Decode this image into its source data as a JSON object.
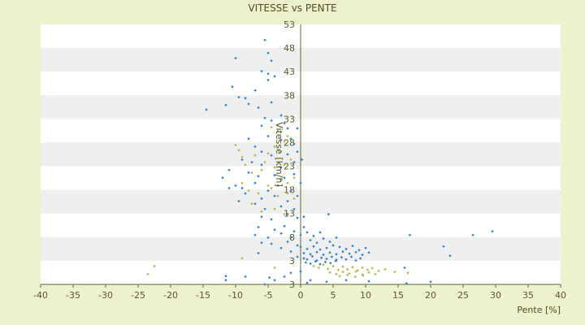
{
  "chart_data": {
    "type": "scatter",
    "title": "VITESSE vs PENTE",
    "xlabel": "Pente [%]",
    "ylabel": "Vitesse [km/h]",
    "xlim": [
      -40,
      40
    ],
    "ylim": [
      3,
      53
    ],
    "x_ticks": [
      "-40",
      "-35",
      "-30",
      "-25",
      "-20",
      "-15",
      "-10",
      "-5",
      "0",
      "5",
      "10",
      "15",
      "20",
      "25",
      "30",
      "35",
      "40"
    ],
    "y_ticks": [
      "3",
      "3",
      "8",
      "13",
      "18",
      "23",
      "28",
      "33",
      "38",
      "43",
      "48",
      "53"
    ],
    "grid": "horizontal bands",
    "legend": "none",
    "colors": {
      "background": "#edf2cc",
      "plot_band_light": "#ffffff",
      "plot_band_dark": "#efefef",
      "series_blue": "#2f7fd6",
      "series_olive": "#b7b54a",
      "axis": "#666633"
    },
    "series": [
      {
        "color": "#2f7fd6",
        "points": [
          [
            -5.5,
            50
          ],
          [
            -5,
            47.5
          ],
          [
            -4.5,
            46
          ],
          [
            -10,
            46.5
          ],
          [
            -6,
            44
          ],
          [
            -5,
            43.5
          ],
          [
            -4,
            43
          ],
          [
            -5,
            42.3
          ],
          [
            -10.5,
            41
          ],
          [
            -9.5,
            39
          ],
          [
            -8.5,
            38.8
          ],
          [
            -8,
            37.7
          ],
          [
            -7,
            40.3
          ],
          [
            -6.5,
            37
          ],
          [
            -4.5,
            38
          ],
          [
            -14.5,
            36.6
          ],
          [
            -11.5,
            37.5
          ],
          [
            -5.5,
            35
          ],
          [
            -4.5,
            34.5
          ],
          [
            -3,
            35.5
          ],
          [
            -2.5,
            34
          ],
          [
            -6,
            33.5
          ],
          [
            -2,
            33
          ],
          [
            -1.5,
            31
          ],
          [
            -0.5,
            33
          ],
          [
            -5,
            31.5
          ],
          [
            -3,
            30.8
          ],
          [
            -1,
            30
          ],
          [
            -8,
            31
          ],
          [
            -7,
            29.5
          ],
          [
            -6,
            28.5
          ],
          [
            -4.5,
            27.8
          ],
          [
            -2,
            28
          ],
          [
            -0.5,
            28.5
          ],
          [
            -9,
            27
          ],
          [
            -7.5,
            26.5
          ],
          [
            -6,
            26
          ],
          [
            -3,
            25.5
          ],
          [
            -1,
            26.5
          ],
          [
            0.2,
            27
          ],
          [
            -11,
            25
          ],
          [
            -8,
            24.5
          ],
          [
            -6.5,
            23.8
          ],
          [
            -4,
            24
          ],
          [
            -2.5,
            23.5
          ],
          [
            -1,
            24.2
          ],
          [
            -12,
            23.5
          ],
          [
            -10,
            22
          ],
          [
            -9,
            21.5
          ],
          [
            -7,
            22.5
          ],
          [
            -5,
            21
          ],
          [
            -3.5,
            22
          ],
          [
            -1.5,
            21
          ],
          [
            0,
            22.5
          ],
          [
            -11,
            21.5
          ],
          [
            -8.5,
            20.5
          ],
          [
            -6,
            19.5
          ],
          [
            -4,
            20
          ],
          [
            -2,
            19
          ],
          [
            -0.5,
            20
          ],
          [
            -9.5,
            19
          ],
          [
            -7,
            18.5
          ],
          [
            -5.5,
            17.5
          ],
          [
            -3,
            18
          ],
          [
            -1,
            17.5
          ],
          [
            -6,
            16
          ],
          [
            -4.5,
            15.5
          ],
          [
            -2,
            16.5
          ],
          [
            -0.5,
            15.8
          ],
          [
            0.5,
            16
          ],
          [
            -6.5,
            14
          ],
          [
            -4,
            13.5
          ],
          [
            -2.5,
            14.2
          ],
          [
            -1,
            13.2
          ],
          [
            0.5,
            14
          ],
          [
            4.3,
            16.5
          ],
          [
            -7,
            12.5
          ],
          [
            -5,
            12
          ],
          [
            -3,
            12.8
          ],
          [
            -1.5,
            12
          ],
          [
            0,
            12.5
          ],
          [
            1,
            13
          ],
          [
            2,
            12.3
          ],
          [
            3,
            13
          ],
          [
            -6,
            11
          ],
          [
            -4.5,
            10.8
          ],
          [
            -2,
            11.2
          ],
          [
            -0.5,
            10.5
          ],
          [
            1.5,
            11.5
          ],
          [
            2.5,
            11
          ],
          [
            3.5,
            11.8
          ],
          [
            4.5,
            11.2
          ],
          [
            5.5,
            12
          ],
          [
            -3,
            10
          ],
          [
            0,
            10.2
          ],
          [
            1,
            9.8
          ],
          [
            2,
            10.3
          ],
          [
            3,
            9.7
          ],
          [
            4,
            10
          ],
          [
            5,
            10.5
          ],
          [
            6,
            10.2
          ],
          [
            7,
            9.8
          ],
          [
            8,
            10.4
          ],
          [
            9,
            9.6
          ],
          [
            10,
            10
          ],
          [
            -6.5,
            9
          ],
          [
            -1.5,
            9.3
          ],
          [
            0.5,
            9
          ],
          [
            1.5,
            8.8
          ],
          [
            2.5,
            9.2
          ],
          [
            3.5,
            8.7
          ],
          [
            4.5,
            9.1
          ],
          [
            5.5,
            8.8
          ],
          [
            6.5,
            9.3
          ],
          [
            7.5,
            8.9
          ],
          [
            8.5,
            9.2
          ],
          [
            9.5,
            8.7
          ],
          [
            10.5,
            9.1
          ],
          [
            -0.5,
            8.3
          ],
          [
            0.5,
            8
          ],
          [
            1,
            7.8
          ],
          [
            1.8,
            8.4
          ],
          [
            2.5,
            7.6
          ],
          [
            3.2,
            8.1
          ],
          [
            4,
            7.9
          ],
          [
            4.8,
            8.3
          ],
          [
            5.5,
            7.7
          ],
          [
            6.3,
            8.2
          ],
          [
            7,
            7.8
          ],
          [
            7.8,
            8.3
          ],
          [
            8.5,
            7.6
          ],
          [
            9.2,
            8
          ],
          [
            0.8,
            7.2
          ],
          [
            1.5,
            7
          ],
          [
            2.3,
            7.4
          ],
          [
            3,
            6.9
          ],
          [
            3.8,
            7.3
          ],
          [
            4.6,
            7.1
          ],
          [
            5.4,
            7.5
          ],
          [
            16.8,
            12.5
          ],
          [
            22,
            10.3
          ],
          [
            23,
            8.5
          ],
          [
            26.5,
            12.5
          ],
          [
            29.5,
            13.2
          ],
          [
            16,
            6.2
          ],
          [
            20,
            3.5
          ],
          [
            16.3,
            3.2
          ],
          [
            10.5,
            3.6
          ],
          [
            7,
            3.8
          ],
          [
            4,
            3.5
          ],
          [
            -11.5,
            4.6
          ],
          [
            -11.5,
            3.8
          ],
          [
            -8.5,
            4.5
          ],
          [
            -6.5,
            2.9
          ],
          [
            -5.5,
            3
          ],
          [
            -4.8,
            4.3
          ],
          [
            -4,
            3.8
          ],
          [
            -2.5,
            4.5
          ],
          [
            -1.5,
            5.2
          ],
          [
            1,
            3.3
          ],
          [
            1.5,
            3.8
          ],
          [
            0,
            5.5
          ]
        ]
      },
      {
        "color": "#b7b54a",
        "points": [
          [
            -23.5,
            5
          ],
          [
            -22.5,
            6.5
          ],
          [
            -9,
            8
          ],
          [
            -4,
            6.2
          ],
          [
            -10,
            29.8
          ],
          [
            -9.5,
            28.8
          ],
          [
            -9,
            27.5
          ],
          [
            -8.5,
            26
          ],
          [
            -7.5,
            24.5
          ],
          [
            -7,
            27.8
          ],
          [
            -5,
            28.2
          ],
          [
            -4,
            29.5
          ],
          [
            -3,
            28.5
          ],
          [
            -2.5,
            30.5
          ],
          [
            -2,
            31.5
          ],
          [
            -3.5,
            32.5
          ],
          [
            -4.5,
            33.2
          ],
          [
            -5.5,
            26.5
          ],
          [
            -6,
            25
          ],
          [
            -4,
            25.5
          ],
          [
            -2.5,
            26
          ],
          [
            -1.5,
            27
          ],
          [
            -3,
            23
          ],
          [
            -2,
            22.5
          ],
          [
            -1,
            23.5
          ],
          [
            -9,
            22.5
          ],
          [
            -8,
            21
          ],
          [
            -6.5,
            20.5
          ],
          [
            -5,
            22
          ],
          [
            -4.5,
            21.5
          ],
          [
            -3.5,
            20
          ],
          [
            -2,
            20.5
          ],
          [
            -1,
            19.5
          ],
          [
            -7.5,
            18.5
          ],
          [
            -6,
            17
          ],
          [
            -4,
            17.5
          ],
          [
            -2.5,
            16.5
          ],
          [
            2,
            6.5
          ],
          [
            2.8,
            6.2
          ],
          [
            3.5,
            6.8
          ],
          [
            4.2,
            6
          ],
          [
            5,
            6.5
          ],
          [
            5.8,
            5.8
          ],
          [
            6.5,
            6.4
          ],
          [
            7.2,
            5.9
          ],
          [
            8,
            6.3
          ],
          [
            8.8,
            5.7
          ],
          [
            9.5,
            6.2
          ],
          [
            10.3,
            5.8
          ],
          [
            11,
            6.1
          ],
          [
            12,
            5.6
          ],
          [
            13,
            5.9
          ],
          [
            14.5,
            5.4
          ],
          [
            4.5,
            5.3
          ],
          [
            5.5,
            5
          ],
          [
            6.5,
            5.4
          ],
          [
            7.5,
            5.1
          ],
          [
            8.5,
            5.5
          ],
          [
            9.5,
            4.9
          ],
          [
            10.5,
            5.3
          ],
          [
            11.5,
            5
          ],
          [
            6,
            4.6
          ],
          [
            7.2,
            4.8
          ],
          [
            8.4,
            4.5
          ],
          [
            9.6,
            4.7
          ],
          [
            16.5,
            5.2
          ]
        ]
      }
    ]
  }
}
